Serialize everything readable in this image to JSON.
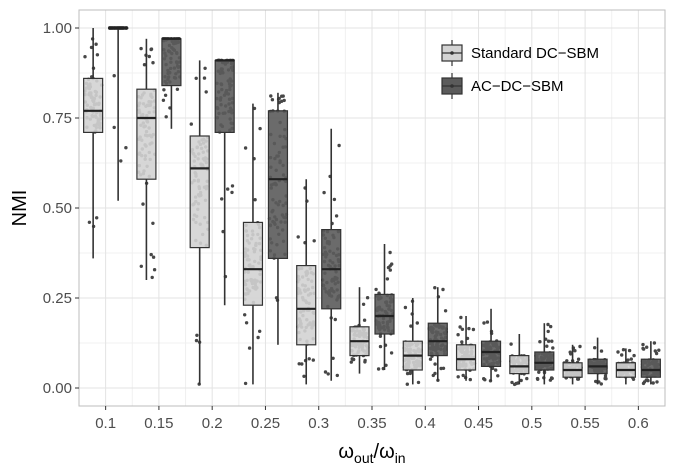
{
  "chart_data": {
    "type": "boxplot",
    "title": "",
    "xlabel": {
      "base": "ω",
      "sub1": "out",
      "sep": "/",
      "base2": "ω",
      "sub2": "in"
    },
    "ylabel": "NMI",
    "ylim": [
      -0.05,
      1.05
    ],
    "yticks": [
      "0.00",
      "0.25",
      "0.50",
      "0.75",
      "1.00"
    ],
    "ytick_values": [
      0,
      0.25,
      0.5,
      0.75,
      1.0
    ],
    "categories": [
      "0.1",
      "0.15",
      "0.2",
      "0.25",
      "0.3",
      "0.35",
      "0.4",
      "0.45",
      "0.5",
      "0.55",
      "0.6"
    ],
    "grid": true,
    "legend_position": "top-right",
    "series": [
      {
        "name": "Standard DC−SBM",
        "color": "#d3d3d3",
        "boxes": [
          {
            "whisker_low": 0.36,
            "q1": 0.71,
            "median": 0.77,
            "q3": 0.86,
            "whisker_high": 1.0
          },
          {
            "whisker_low": 0.3,
            "q1": 0.58,
            "median": 0.75,
            "q3": 0.83,
            "whisker_high": 0.97
          },
          {
            "whisker_low": 0.01,
            "q1": 0.39,
            "median": 0.61,
            "q3": 0.7,
            "whisker_high": 0.91
          },
          {
            "whisker_low": 0.01,
            "q1": 0.23,
            "median": 0.33,
            "q3": 0.46,
            "whisker_high": 0.79
          },
          {
            "whisker_low": 0.01,
            "q1": 0.12,
            "median": 0.22,
            "q3": 0.34,
            "whisker_high": 0.58
          },
          {
            "whisker_low": 0.04,
            "q1": 0.09,
            "median": 0.13,
            "q3": 0.17,
            "whisker_high": 0.28
          },
          {
            "whisker_low": 0.01,
            "q1": 0.05,
            "median": 0.09,
            "q3": 0.13,
            "whisker_high": 0.25
          },
          {
            "whisker_low": 0.02,
            "q1": 0.05,
            "median": 0.08,
            "q3": 0.12,
            "whisker_high": 0.2
          },
          {
            "whisker_low": 0.01,
            "q1": 0.04,
            "median": 0.06,
            "q3": 0.09,
            "whisker_high": 0.15
          },
          {
            "whisker_low": 0.01,
            "q1": 0.03,
            "median": 0.05,
            "q3": 0.07,
            "whisker_high": 0.12
          },
          {
            "whisker_low": 0.01,
            "q1": 0.03,
            "median": 0.05,
            "q3": 0.07,
            "whisker_high": 0.11
          }
        ]
      },
      {
        "name": "AC−DC−SBM",
        "color": "#5b5b5b",
        "boxes": [
          {
            "whisker_low": 0.52,
            "q1": 1.0,
            "median": 1.0,
            "q3": 1.0,
            "whisker_high": 1.0
          },
          {
            "whisker_low": 0.72,
            "q1": 0.84,
            "median": 0.97,
            "q3": 0.97,
            "whisker_high": 0.97
          },
          {
            "whisker_low": 0.23,
            "q1": 0.71,
            "median": 0.91,
            "q3": 0.91,
            "whisker_high": 0.91
          },
          {
            "whisker_low": 0.12,
            "q1": 0.36,
            "median": 0.58,
            "q3": 0.77,
            "whisker_high": 0.82
          },
          {
            "whisker_low": 0.02,
            "q1": 0.22,
            "median": 0.33,
            "q3": 0.44,
            "whisker_high": 0.72
          },
          {
            "whisker_low": 0.05,
            "q1": 0.15,
            "median": 0.2,
            "q3": 0.26,
            "whisker_high": 0.4
          },
          {
            "whisker_low": 0.02,
            "q1": 0.09,
            "median": 0.13,
            "q3": 0.18,
            "whisker_high": 0.28
          },
          {
            "whisker_low": 0.02,
            "q1": 0.06,
            "median": 0.1,
            "q3": 0.13,
            "whisker_high": 0.22
          },
          {
            "whisker_low": 0.01,
            "q1": 0.05,
            "median": 0.07,
            "q3": 0.1,
            "whisker_high": 0.18
          },
          {
            "whisker_low": 0.01,
            "q1": 0.04,
            "median": 0.06,
            "q3": 0.08,
            "whisker_high": 0.14
          },
          {
            "whisker_low": 0.01,
            "q1": 0.03,
            "median": 0.05,
            "q3": 0.08,
            "whisker_high": 0.13
          }
        ]
      }
    ]
  }
}
